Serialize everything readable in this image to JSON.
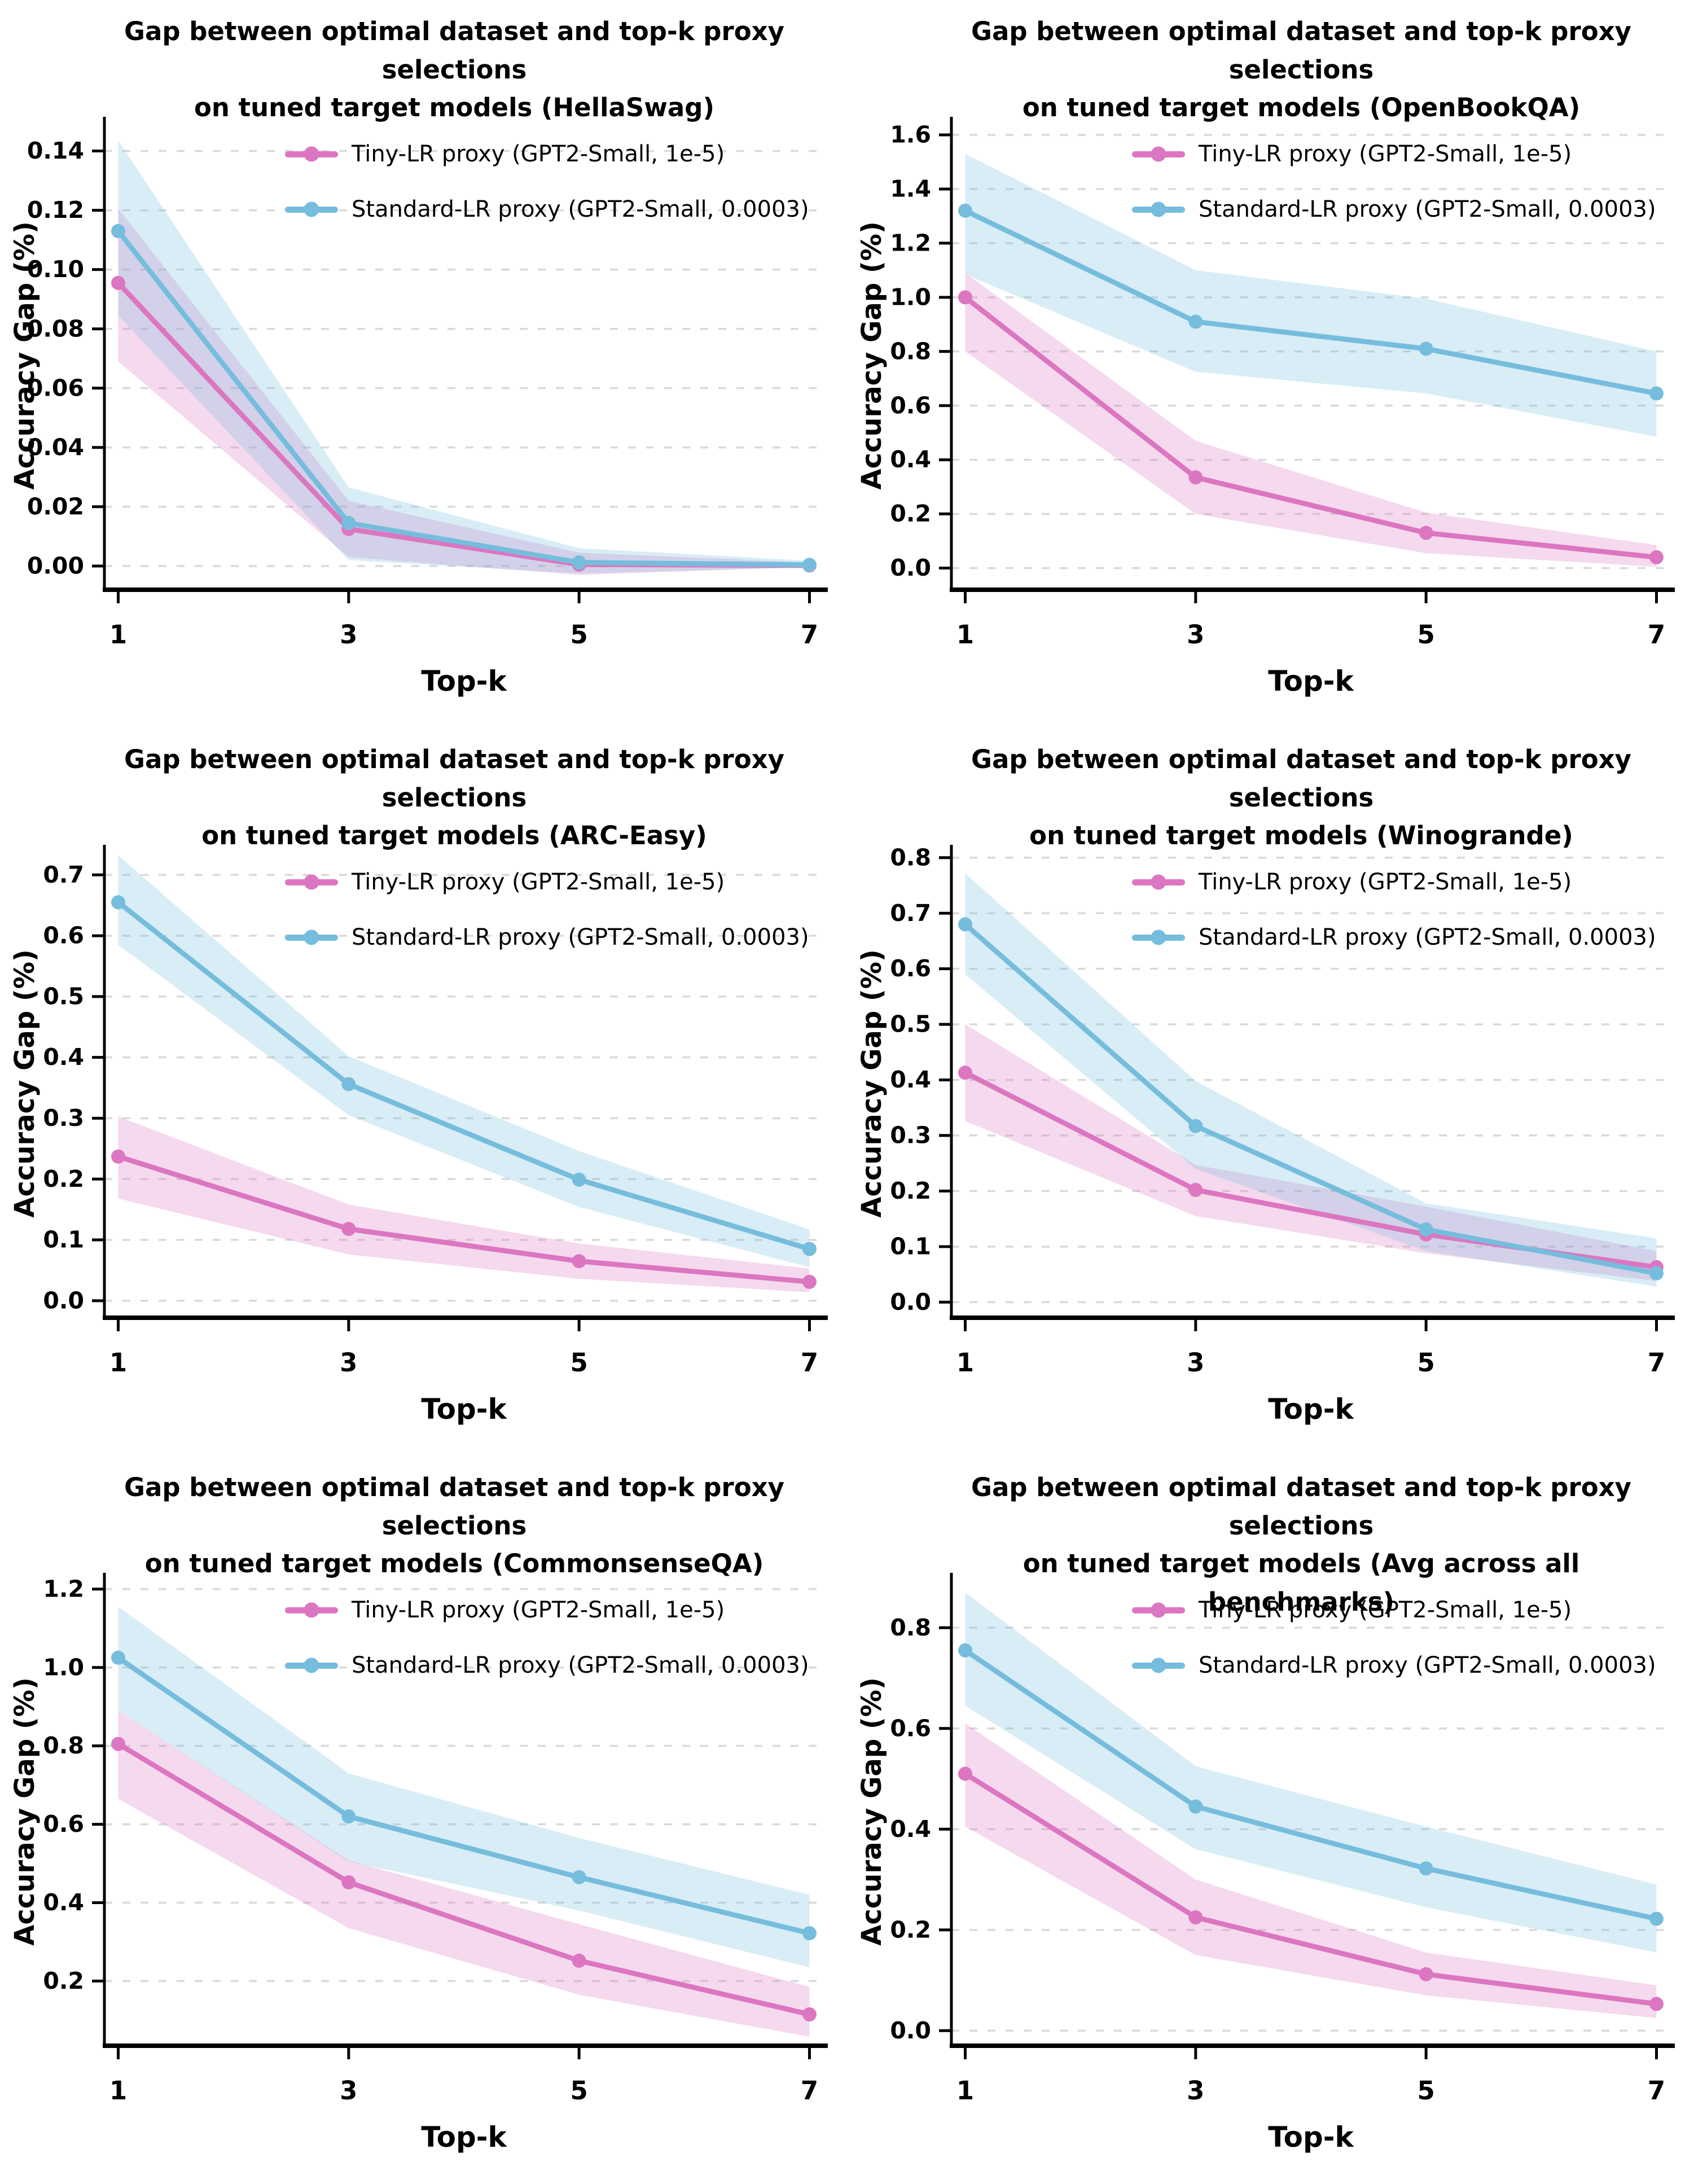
{
  "colors": {
    "tiny_line": "#DC76C1",
    "standard_line": "#76BDDD",
    "band_opacity": 0.28,
    "grid_line": "#D9D9D9",
    "axis": "#000000",
    "background": "#FFFFFF",
    "text": "#000000"
  },
  "chart_data": [
    {
      "type": "line",
      "title_line1": "Gap between optimal dataset and top-k proxy selections",
      "title_line2": "on tuned target models (HellaSwag)",
      "dataset": "HellaSwag",
      "xlabel": "Top-k",
      "ylabel": "Accuracy Gap (%)",
      "grid": "horizontal-dashed",
      "legend_position": "upper center",
      "x": [
        1,
        3,
        5,
        7
      ],
      "x_tick_labels": [
        "1",
        "3",
        "5",
        "7"
      ],
      "xlim": [
        0.88,
        7.12
      ],
      "ylim": [
        -0.008,
        0.15
      ],
      "y_ticks": [
        0.0,
        0.02,
        0.04,
        0.06,
        0.08,
        0.1,
        0.12,
        0.14
      ],
      "y_tick_labels": [
        "0.00",
        "0.02",
        "0.04",
        "0.06",
        "0.08",
        "0.10",
        "0.12",
        "0.14"
      ],
      "series": [
        {
          "name": "Tiny-LR proxy (GPT2-Small, 1e-5)",
          "color_key": "tiny",
          "values": [
            0.0955,
            0.0125,
            0.0005,
            0.0002
          ],
          "band_lower": [
            0.069,
            0.003,
            -0.003,
            -0.0003
          ],
          "band_upper": [
            0.1205,
            0.022,
            0.0045,
            0.0012
          ]
        },
        {
          "name": "Standard-LR proxy (GPT2-Small, 0.0003)",
          "color_key": "standard",
          "values": [
            0.113,
            0.0145,
            0.0012,
            0.0004
          ],
          "band_lower": [
            0.0845,
            0.002,
            -0.0025,
            -0.0005
          ],
          "band_upper": [
            0.1435,
            0.0265,
            0.006,
            0.0018
          ]
        }
      ]
    },
    {
      "type": "line",
      "title_line1": "Gap between optimal dataset and top-k proxy selections",
      "title_line2": "on tuned target models (OpenBookQA)",
      "dataset": "OpenBookQA",
      "xlabel": "Top-k",
      "ylabel": "Accuracy Gap (%)",
      "grid": "horizontal-dashed",
      "legend_position": "upper center",
      "x": [
        1,
        3,
        5,
        7
      ],
      "x_tick_labels": [
        "1",
        "3",
        "5",
        "7"
      ],
      "xlim": [
        0.88,
        7.12
      ],
      "ylim": [
        -0.08,
        1.65
      ],
      "y_ticks": [
        0.0,
        0.2,
        0.4,
        0.6,
        0.8,
        1.0,
        1.2,
        1.4,
        1.6
      ],
      "y_tick_labels": [
        "0.0",
        "0.2",
        "0.4",
        "0.6",
        "0.8",
        "1.0",
        "1.2",
        "1.4",
        "1.6"
      ],
      "series": [
        {
          "name": "Tiny-LR proxy (GPT2-Small, 1e-5)",
          "color_key": "tiny",
          "values": [
            1.0,
            0.335,
            0.13,
            0.04
          ],
          "band_lower": [
            0.8,
            0.2,
            0.055,
            0.005
          ],
          "band_upper": [
            1.09,
            0.47,
            0.205,
            0.085
          ]
        },
        {
          "name": "Standard-LR proxy (GPT2-Small, 0.0003)",
          "color_key": "standard",
          "values": [
            1.32,
            0.91,
            0.81,
            0.645
          ],
          "band_lower": [
            1.085,
            0.725,
            0.645,
            0.485
          ],
          "band_upper": [
            1.53,
            1.1,
            0.995,
            0.8
          ]
        }
      ]
    },
    {
      "type": "line",
      "title_line1": "Gap between optimal dataset and top-k proxy selections",
      "title_line2": "on tuned target models (ARC-Easy)",
      "dataset": "ARC-Easy",
      "xlabel": "Top-k",
      "ylabel": "Accuracy Gap (%)",
      "grid": "horizontal-dashed",
      "legend_position": "upper center",
      "x": [
        1,
        3,
        5,
        7
      ],
      "x_tick_labels": [
        "1",
        "3",
        "5",
        "7"
      ],
      "xlim": [
        0.88,
        7.12
      ],
      "ylim": [
        -0.028,
        0.742
      ],
      "y_ticks": [
        0.0,
        0.1,
        0.2,
        0.3,
        0.4,
        0.5,
        0.6,
        0.7
      ],
      "y_tick_labels": [
        "0.0",
        "0.1",
        "0.2",
        "0.3",
        "0.4",
        "0.5",
        "0.6",
        "0.7"
      ],
      "series": [
        {
          "name": "Tiny-LR proxy (GPT2-Small, 1e-5)",
          "color_key": "tiny",
          "values": [
            0.237,
            0.118,
            0.065,
            0.031
          ],
          "band_lower": [
            0.168,
            0.076,
            0.036,
            0.014
          ],
          "band_upper": [
            0.303,
            0.158,
            0.094,
            0.053
          ]
        },
        {
          "name": "Standard-LR proxy (GPT2-Small, 0.0003)",
          "color_key": "standard",
          "values": [
            0.655,
            0.356,
            0.199,
            0.085
          ],
          "band_lower": [
            0.585,
            0.305,
            0.154,
            0.055
          ],
          "band_upper": [
            0.732,
            0.402,
            0.246,
            0.117
          ]
        }
      ]
    },
    {
      "type": "line",
      "title_line1": "Gap between optimal dataset and top-k proxy selections",
      "title_line2": "on tuned target models (Winogrande)",
      "dataset": "Winogrande",
      "xlabel": "Top-k",
      "ylabel": "Accuracy Gap (%)",
      "grid": "horizontal-dashed",
      "legend_position": "upper center",
      "x": [
        1,
        3,
        5,
        7
      ],
      "x_tick_labels": [
        "1",
        "3",
        "5",
        "7"
      ],
      "xlim": [
        0.88,
        7.12
      ],
      "ylim": [
        -0.028,
        0.815
      ],
      "y_ticks": [
        0.0,
        0.1,
        0.2,
        0.3,
        0.4,
        0.5,
        0.6,
        0.7,
        0.8
      ],
      "y_tick_labels": [
        "0.0",
        "0.1",
        "0.2",
        "0.3",
        "0.4",
        "0.5",
        "0.6",
        "0.7",
        "0.8"
      ],
      "series": [
        {
          "name": "Tiny-LR proxy (GPT2-Small, 1e-5)",
          "color_key": "tiny",
          "values": [
            0.413,
            0.202,
            0.122,
            0.063
          ],
          "band_lower": [
            0.326,
            0.155,
            0.088,
            0.038
          ],
          "band_upper": [
            0.5,
            0.247,
            0.172,
            0.092
          ]
        },
        {
          "name": "Standard-LR proxy (GPT2-Small, 0.0003)",
          "color_key": "standard",
          "values": [
            0.68,
            0.317,
            0.131,
            0.052
          ],
          "band_lower": [
            0.59,
            0.24,
            0.092,
            0.028
          ],
          "band_upper": [
            0.772,
            0.398,
            0.178,
            0.115
          ]
        }
      ]
    },
    {
      "type": "line",
      "title_line1": "Gap between optimal dataset and top-k proxy selections",
      "title_line2": "on tuned target models (CommonsenseQA)",
      "dataset": "CommonsenseQA",
      "xlabel": "Top-k",
      "ylabel": "Accuracy Gap (%)",
      "grid": "horizontal-dashed",
      "legend_position": "upper center",
      "x": [
        1,
        3,
        5,
        7
      ],
      "x_tick_labels": [
        "1",
        "3",
        "5",
        "7"
      ],
      "xlim": [
        0.88,
        7.12
      ],
      "ylim": [
        0.035,
        1.23
      ],
      "y_ticks": [
        0.2,
        0.4,
        0.6,
        0.8,
        1.0,
        1.2
      ],
      "y_tick_labels": [
        "0.2",
        "0.4",
        "0.6",
        "0.8",
        "1.0",
        "1.2"
      ],
      "series": [
        {
          "name": "Tiny-LR proxy (GPT2-Small, 1e-5)",
          "color_key": "tiny",
          "values": [
            0.805,
            0.452,
            0.252,
            0.115
          ],
          "band_lower": [
            0.665,
            0.335,
            0.165,
            0.058
          ],
          "band_upper": [
            0.89,
            0.508,
            0.345,
            0.185
          ]
        },
        {
          "name": "Standard-LR proxy (GPT2-Small, 0.0003)",
          "color_key": "standard",
          "values": [
            1.025,
            0.62,
            0.465,
            0.322
          ],
          "band_lower": [
            0.89,
            0.505,
            0.38,
            0.235
          ],
          "band_upper": [
            1.155,
            0.73,
            0.565,
            0.42
          ]
        }
      ]
    },
    {
      "type": "line",
      "title_line1": "Gap between optimal dataset and top-k proxy selections",
      "title_line2": "on tuned target models (Avg across all benchmarks)",
      "dataset": "Avg across all benchmarks",
      "xlabel": "Top-k",
      "ylabel": "Accuracy Gap (%)",
      "grid": "horizontal-dashed",
      "legend_position": "upper center",
      "x": [
        1,
        3,
        5,
        7
      ],
      "x_tick_labels": [
        "1",
        "3",
        "5",
        "7"
      ],
      "xlim": [
        0.88,
        7.12
      ],
      "ylim": [
        -0.03,
        0.9
      ],
      "y_ticks": [
        0.0,
        0.2,
        0.4,
        0.6,
        0.8
      ],
      "y_tick_labels": [
        "0.0",
        "0.2",
        "0.4",
        "0.6",
        "0.8"
      ],
      "series": [
        {
          "name": "Tiny-LR proxy (GPT2-Small, 1e-5)",
          "color_key": "tiny",
          "values": [
            0.51,
            0.225,
            0.112,
            0.053
          ],
          "band_lower": [
            0.405,
            0.15,
            0.07,
            0.025
          ],
          "band_upper": [
            0.61,
            0.3,
            0.155,
            0.09
          ]
        },
        {
          "name": "Standard-LR proxy (GPT2-Small, 0.0003)",
          "color_key": "standard",
          "values": [
            0.755,
            0.445,
            0.322,
            0.222
          ],
          "band_lower": [
            0.645,
            0.36,
            0.245,
            0.155
          ],
          "band_upper": [
            0.87,
            0.525,
            0.405,
            0.29
          ]
        }
      ]
    }
  ]
}
